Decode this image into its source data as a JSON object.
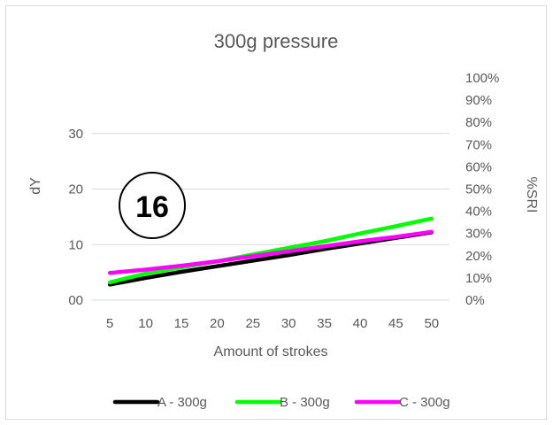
{
  "chart_data": {
    "type": "line",
    "title": "300g pressure",
    "xlabel": "Amount of strokes",
    "ylabel": "dY",
    "y2label": "%SRI",
    "x": [
      5,
      10,
      15,
      20,
      25,
      30,
      35,
      40,
      45,
      50
    ],
    "x_tick_labels": [
      "5",
      "10",
      "15",
      "20",
      "25",
      "30",
      "35",
      "40",
      "45",
      "50"
    ],
    "ylim": [
      0,
      40
    ],
    "y_tick_values": [
      0,
      10,
      20,
      30
    ],
    "y_tick_labels": [
      "00",
      "10",
      "20",
      "30"
    ],
    "y2lim": [
      0,
      100
    ],
    "y2_tick_values": [
      0,
      10,
      20,
      30,
      40,
      50,
      60,
      70,
      80,
      90,
      100
    ],
    "y2_tick_labels": [
      "0%",
      "10%",
      "20%",
      "30%",
      "40%",
      "50%",
      "60%",
      "70%",
      "80%",
      "90%",
      "100%"
    ],
    "grid": true,
    "legend_position": "bottom",
    "annotation": "16",
    "series": [
      {
        "name": "A - 300g",
        "color": "#000000",
        "values": [
          2.8,
          4.0,
          5.1,
          6.1,
          7.1,
          8.1,
          9.2,
          10.2,
          11.2,
          12.2
        ]
      },
      {
        "name": "B - 300g",
        "color": "#00FF00",
        "values": [
          3.2,
          4.8,
          5.9,
          7.0,
          8.2,
          9.4,
          10.6,
          12.0,
          13.3,
          14.7
        ]
      },
      {
        "name": "C - 300g",
        "color": "#FF00FF",
        "values": [
          4.9,
          5.5,
          6.2,
          7.0,
          7.9,
          8.8,
          9.7,
          10.6,
          11.4,
          12.3
        ]
      }
    ]
  }
}
